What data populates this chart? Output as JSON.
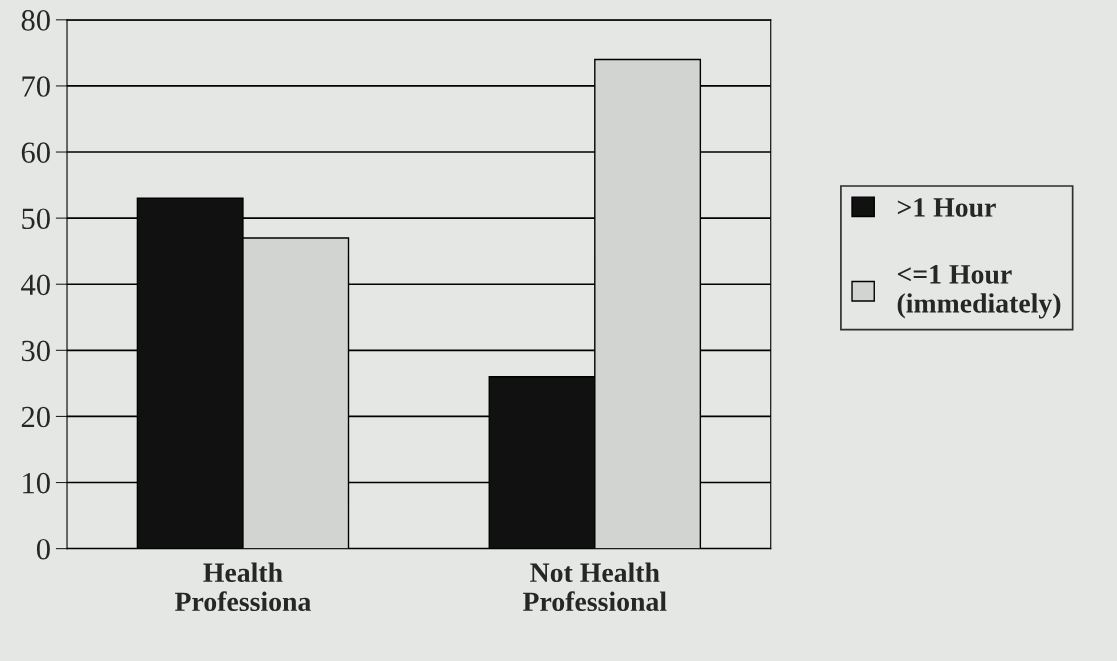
{
  "chart_data": {
    "type": "bar",
    "categories": [
      "Health\nProfessiona",
      "Not Health\nProfessional"
    ],
    "series": [
      {
        "name": ">1 Hour",
        "color": "#111111",
        "values": [
          53,
          26
        ]
      },
      {
        "name": "<=1 Hour\n(immediately)",
        "color": "#d2d4d1",
        "values": [
          47,
          74
        ]
      }
    ],
    "ylim": [
      0,
      80
    ],
    "yticks": [
      0,
      10,
      20,
      30,
      40,
      50,
      60,
      70,
      80
    ],
    "grid": "y",
    "legend": "right"
  }
}
